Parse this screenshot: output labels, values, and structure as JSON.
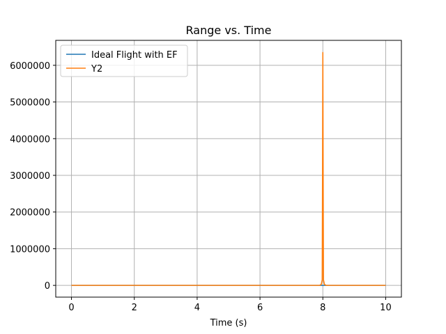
{
  "chart_data": {
    "type": "line",
    "title": "Range vs. Time",
    "xlabel": "Time (s)",
    "ylabel": "",
    "xlim": [
      -0.5,
      10.5
    ],
    "ylim": [
      -320000,
      6680000
    ],
    "xticks": [
      0,
      2,
      4,
      6,
      8,
      10
    ],
    "xtick_labels": [
      "0",
      "2",
      "4",
      "6",
      "8",
      "10"
    ],
    "yticks": [
      0,
      1000000,
      2000000,
      3000000,
      4000000,
      5000000,
      6000000
    ],
    "ytick_labels": [
      "0",
      "1000000",
      "2000000",
      "3000000",
      "4000000",
      "5000000",
      "6000000"
    ],
    "grid": true,
    "legend_position": "top-left",
    "series": [
      {
        "name": "Ideal Flight with EF",
        "color": "#1f77b4",
        "x": [
          0,
          8.0,
          8.02,
          10
        ],
        "y": [
          0,
          0,
          0,
          0
        ]
      },
      {
        "name": "Y2",
        "color": "#ff7f0e",
        "x": [
          0,
          7.9,
          7.95,
          7.98,
          7.99,
          8.0,
          8.01,
          8.02,
          8.05,
          8.1,
          10
        ],
        "y": [
          0,
          0,
          30000,
          150000,
          3000000,
          6350000,
          3000000,
          150000,
          30000,
          0,
          0
        ]
      }
    ]
  }
}
